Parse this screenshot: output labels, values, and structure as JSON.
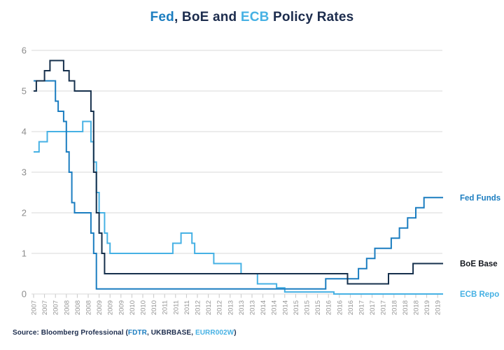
{
  "title": {
    "segments": [
      {
        "text": "Fed",
        "color": "#1b7dc0"
      },
      {
        "text": ", BoE and ",
        "color": "#1c2c4d"
      },
      {
        "text": "ECB",
        "color": "#46b1e4"
      },
      {
        "text": " Policy Rates",
        "color": "#1c2c4d"
      }
    ]
  },
  "source": {
    "segments": [
      {
        "text": "Source: Bloomberg Professional (",
        "color": "#1c2c4d"
      },
      {
        "text": "FDTR",
        "color": "#1b7dc0"
      },
      {
        "text": ", UKBRBASE, ",
        "color": "#1c2c4d"
      },
      {
        "text": "EURR002W",
        "color": "#46b1e4"
      },
      {
        "text": ")",
        "color": "#1c2c4d"
      }
    ]
  },
  "colors": {
    "fed": "#1b7dc0",
    "boe": "#16304c",
    "ecb": "#46b1e4",
    "grid": "#d9d9d9",
    "tick": "#c6c6c6",
    "y_label": "#8c8c8c",
    "x_label": "#969696",
    "background": "#ffffff"
  },
  "chart_data": {
    "type": "line",
    "step": true,
    "title": "Fed, BoE and ECB Policy Rates",
    "xlabel": "",
    "ylabel": "",
    "ylim": [
      0,
      6
    ],
    "yticks": [
      "0",
      "1",
      "2",
      "3",
      "4",
      "5",
      "6"
    ],
    "grid": "horizontal",
    "legend_position": "right-of-line-ends",
    "x_start": "2007-01",
    "x_end": "2019-07",
    "x_tick_interval_months": 4,
    "x_tick_labels": [
      "2007",
      "2007",
      "2007",
      "2008",
      "2008",
      "2008",
      "2009",
      "2009",
      "2009",
      "2010",
      "2010",
      "2010",
      "2011",
      "2011",
      "2011",
      "2012",
      "2012",
      "2012",
      "2013",
      "2013",
      "2013",
      "2014",
      "2014",
      "2014",
      "2015",
      "2015",
      "2015",
      "2016",
      "2016",
      "2016",
      "2017",
      "2017",
      "2017",
      "2018",
      "2018",
      "2018",
      "2019",
      "2019"
    ],
    "series": [
      {
        "name": "Fed Funds",
        "color": "#1b7dc0",
        "label_color": "#1b7dc0",
        "changes": [
          [
            "2007-01",
            5.25
          ],
          [
            "2007-09",
            4.75
          ],
          [
            "2007-10",
            4.5
          ],
          [
            "2007-12",
            4.25
          ],
          [
            "2008-01",
            3.5
          ],
          [
            "2008-02",
            3.0
          ],
          [
            "2008-03",
            2.25
          ],
          [
            "2008-04",
            2.0
          ],
          [
            "2008-10",
            1.5
          ],
          [
            "2008-11",
            1.0
          ],
          [
            "2008-12",
            0.125
          ],
          [
            "2015-12",
            0.375
          ],
          [
            "2016-12",
            0.625
          ],
          [
            "2017-03",
            0.875
          ],
          [
            "2017-06",
            1.125
          ],
          [
            "2017-12",
            1.375
          ],
          [
            "2018-03",
            1.625
          ],
          [
            "2018-06",
            1.875
          ],
          [
            "2018-09",
            2.125
          ],
          [
            "2018-12",
            2.375
          ]
        ]
      },
      {
        "name": "BoE Base",
        "color": "#16304c",
        "label_color": "#14181f",
        "changes": [
          [
            "2007-01",
            5.0
          ],
          [
            "2007-02",
            5.25
          ],
          [
            "2007-05",
            5.5
          ],
          [
            "2007-07",
            5.75
          ],
          [
            "2007-12",
            5.5
          ],
          [
            "2008-02",
            5.25
          ],
          [
            "2008-04",
            5.0
          ],
          [
            "2008-10",
            4.5
          ],
          [
            "2008-11",
            3.0
          ],
          [
            "2008-12",
            2.0
          ],
          [
            "2009-01",
            1.5
          ],
          [
            "2009-02",
            1.0
          ],
          [
            "2009-03",
            0.5
          ],
          [
            "2016-08",
            0.25
          ],
          [
            "2017-11",
            0.5
          ],
          [
            "2018-08",
            0.75
          ]
        ]
      },
      {
        "name": "ECB Repo",
        "color": "#46b1e4",
        "label_color": "#46b1e4",
        "changes": [
          [
            "2007-01",
            3.5
          ],
          [
            "2007-03",
            3.75
          ],
          [
            "2007-06",
            4.0
          ],
          [
            "2008-07",
            4.25
          ],
          [
            "2008-10",
            3.75
          ],
          [
            "2008-11",
            3.25
          ],
          [
            "2008-12",
            2.5
          ],
          [
            "2009-01",
            2.0
          ],
          [
            "2009-03",
            1.5
          ],
          [
            "2009-04",
            1.25
          ],
          [
            "2009-05",
            1.0
          ],
          [
            "2011-04",
            1.25
          ],
          [
            "2011-07",
            1.5
          ],
          [
            "2011-11",
            1.25
          ],
          [
            "2011-12",
            1.0
          ],
          [
            "2012-07",
            0.75
          ],
          [
            "2013-05",
            0.5
          ],
          [
            "2013-11",
            0.25
          ],
          [
            "2014-06",
            0.15
          ],
          [
            "2014-09",
            0.05
          ],
          [
            "2016-03",
            0.0
          ]
        ]
      }
    ],
    "draw_order": [
      2,
      0,
      1
    ]
  }
}
